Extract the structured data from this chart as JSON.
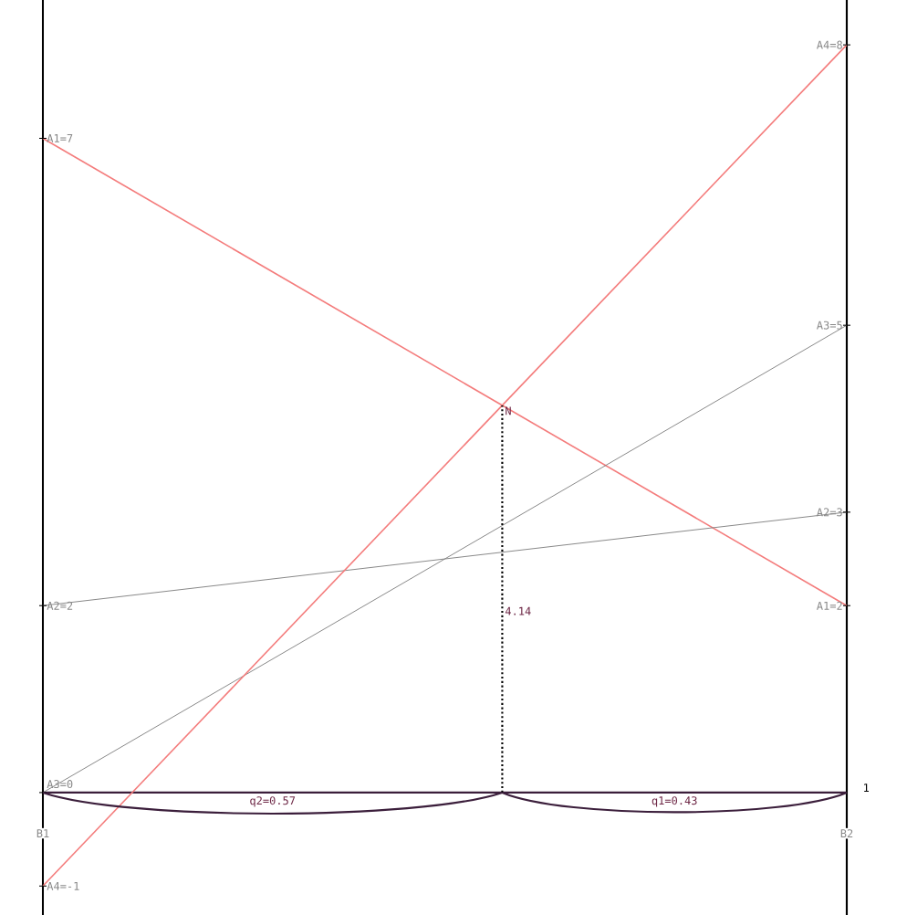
{
  "chart_data": {
    "type": "line",
    "categories": [
      "B1",
      "B2"
    ],
    "ylim": [
      -1.31,
      8.48
    ],
    "series": [
      {
        "color": "#f47c7c",
        "values": [
          7,
          2
        ],
        "value_labels": [
          "A1=7",
          "A1=2"
        ]
      },
      {
        "color": "#808080",
        "values": [
          2,
          3
        ],
        "value_labels": [
          "A2=2",
          "A2=3"
        ]
      },
      {
        "color": "#808080",
        "values": [
          0,
          5
        ],
        "value_labels": [
          "A3=0",
          "A3=5"
        ]
      },
      {
        "color": "#f47c7c",
        "values": [
          -1,
          8
        ],
        "value_labels": [
          "A4=-1",
          "A4=8"
        ]
      }
    ],
    "annotations": [
      "N",
      "4.14",
      "q2=0.57",
      "q1=0.43",
      "1"
    ],
    "legend": false,
    "marker": "none"
  }
}
